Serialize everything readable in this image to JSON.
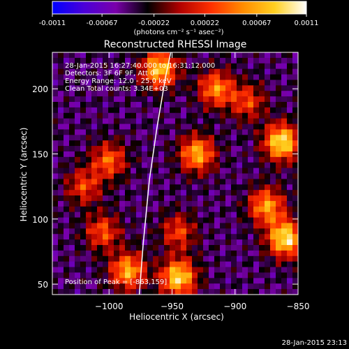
{
  "colorbar": {
    "tick_labels": [
      "-0.0011",
      "-0.00067",
      "-0.00022",
      "0.00022",
      "0.00067",
      "0.0011"
    ],
    "units_label": "(photons cm⁻² s⁻¹ asec⁻²)",
    "range": [
      -0.0011,
      0.0011
    ],
    "stops": [
      "#0000ff",
      "#4b00d8",
      "#7a00aa",
      "#000000",
      "#b00000",
      "#ff3000",
      "#ff8c00",
      "#ffd020",
      "#ffffff"
    ]
  },
  "chart_data": {
    "type": "heatmap",
    "title": "Reconstructed RHESSI Image",
    "xlabel": "Heliocentric X (arcsec)",
    "ylabel": "Heliocentric Y (arcsec)",
    "xlim": [
      -1045,
      -850
    ],
    "ylim": [
      42,
      228
    ],
    "xticks": [
      -1000,
      -950,
      -900,
      -850
    ],
    "xtick_labels": [
      "−1000",
      "−950",
      "−900",
      "−850"
    ],
    "yticks": [
      50,
      100,
      150,
      200
    ],
    "ytick_labels": [
      "50",
      "100",
      "150",
      "200"
    ],
    "annotations": [
      "28-Jan-2015 16:27:40.000 to 16:31:12.000",
      "Detectors: 3F 6F 9F, Att 0",
      "Energy Range: 12.0 - 25.0 keV",
      "Clean    Total counts: 3.34E+03"
    ],
    "peak_label": "Position of Peak = [-863,159]",
    "peak": [
      -863,
      159
    ],
    "grid": false,
    "limb_points": [
      [
        -976,
        42
      ],
      [
        -973,
        80
      ],
      [
        -968,
        130
      ],
      [
        -962,
        170
      ],
      [
        -955,
        210
      ],
      [
        -951,
        228
      ]
    ],
    "hot_spots": [
      {
        "x": -960,
        "y": 215,
        "v": 0.9
      },
      {
        "x": -915,
        "y": 200,
        "v": 0.7
      },
      {
        "x": -863,
        "y": 159,
        "v": 1.0
      },
      {
        "x": -930,
        "y": 150,
        "v": 0.8
      },
      {
        "x": -1000,
        "y": 145,
        "v": 0.6
      },
      {
        "x": -1020,
        "y": 125,
        "v": 0.5
      },
      {
        "x": -1005,
        "y": 90,
        "v": 0.55
      },
      {
        "x": -985,
        "y": 60,
        "v": 0.8
      },
      {
        "x": -945,
        "y": 55,
        "v": 0.95
      },
      {
        "x": -945,
        "y": 90,
        "v": 0.5
      },
      {
        "x": -860,
        "y": 85,
        "v": 1.0
      },
      {
        "x": -875,
        "y": 110,
        "v": 0.75
      },
      {
        "x": -890,
        "y": 190,
        "v": 0.5
      }
    ]
  },
  "footer": {
    "timestamp": "28-Jan-2015 23:13"
  }
}
